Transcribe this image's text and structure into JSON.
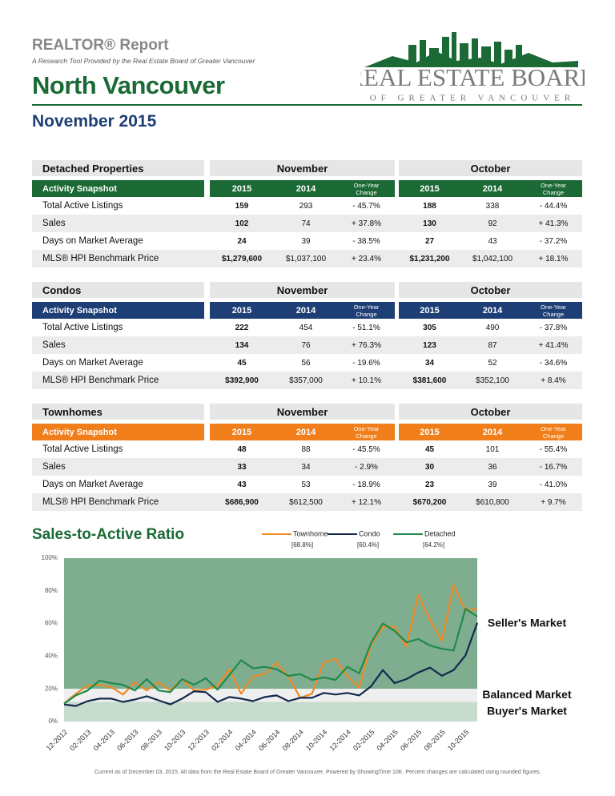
{
  "header": {
    "title": "REALTOR® Report",
    "subtitle": "A Research Tool Provided by the Real Estate Board of Greater Vancouver",
    "area": "North Vancouver",
    "period": "November 2015"
  },
  "logo": {
    "name": "REAL ESTATE BOARD",
    "tagline": "OF GREATER VANCOUVER"
  },
  "tables": [
    {
      "title": "Detached Properties",
      "color": "#1b6a35",
      "groups": [
        "November",
        "October"
      ],
      "columns": [
        "Activity Snapshot",
        "2015",
        "2014",
        "One-Year Change",
        "2015",
        "2014",
        "One-Year Change"
      ],
      "rows": [
        [
          "Total Active Listings",
          "159",
          "293",
          "- 45.7%",
          "188",
          "338",
          "- 44.4%"
        ],
        [
          "Sales",
          "102",
          "74",
          "+ 37.8%",
          "130",
          "92",
          "+ 41.3%"
        ],
        [
          "Days on Market Average",
          "24",
          "39",
          "- 38.5%",
          "27",
          "43",
          "- 37.2%"
        ],
        [
          "MLS® HPI Benchmark Price",
          "$1,279,600",
          "$1,037,100",
          "+ 23.4%",
          "$1,231,200",
          "$1,042,100",
          "+ 18.1%"
        ]
      ]
    },
    {
      "title": "Condos",
      "color": "#1d3f75",
      "groups": [
        "November",
        "October"
      ],
      "columns": [
        "Activity Snapshot",
        "2015",
        "2014",
        "One-Year Change",
        "2015",
        "2014",
        "One-Year Change"
      ],
      "rows": [
        [
          "Total Active Listings",
          "222",
          "454",
          "- 51.1%",
          "305",
          "490",
          "- 37.8%"
        ],
        [
          "Sales",
          "134",
          "76",
          "+ 76.3%",
          "123",
          "87",
          "+ 41.4%"
        ],
        [
          "Days on Market Average",
          "45",
          "56",
          "- 19.6%",
          "34",
          "52",
          "- 34.6%"
        ],
        [
          "MLS® HPI Benchmark Price",
          "$392,900",
          "$357,000",
          "+ 10.1%",
          "$381,600",
          "$352,100",
          "+ 8.4%"
        ]
      ]
    },
    {
      "title": "Townhomes",
      "color": "#f07e1b",
      "groups": [
        "November",
        "October"
      ],
      "columns": [
        "Activity Snapshot",
        "2015",
        "2014",
        "One-Year Change",
        "2015",
        "2014",
        "One-Year Change"
      ],
      "rows": [
        [
          "Total Active Listings",
          "48",
          "88",
          "- 45.5%",
          "45",
          "101",
          "- 55.4%"
        ],
        [
          "Sales",
          "33",
          "34",
          "- 2.9%",
          "30",
          "36",
          "- 16.7%"
        ],
        [
          "Days on Market Average",
          "43",
          "53",
          "- 18.9%",
          "23",
          "39",
          "- 41.0%"
        ],
        [
          "MLS® HPI Benchmark Price",
          "$686,900",
          "$612,500",
          "+ 12.1%",
          "$670,200",
          "$610,800",
          "+ 9.7%"
        ]
      ]
    }
  ],
  "chart_data": {
    "type": "line",
    "title": "Sales-to-Active Ratio",
    "categories": [
      "12-2012",
      null,
      "02-2013",
      null,
      "04-2013",
      null,
      "06-2013",
      null,
      "08-2013",
      null,
      "10-2013",
      null,
      "12-2013",
      null,
      "02-2014",
      null,
      "04-2014",
      null,
      "06-2014",
      null,
      "08-2014",
      null,
      "10-2014",
      null,
      "12-2014",
      null,
      "02-2015",
      null,
      "04-2015",
      null,
      "06-2015",
      null,
      "08-2015",
      null,
      "10-2015",
      null
    ],
    "series": [
      {
        "name": "Townhome",
        "note": "[68.8%]",
        "color": "#f08a24",
        "values": [
          11,
          17,
          22,
          22.5,
          21,
          16.5,
          24,
          19,
          24,
          19,
          26,
          19,
          19.5,
          22,
          32,
          17,
          27.5,
          29,
          36,
          27.5,
          14.5,
          17,
          36,
          38.5,
          27.5,
          21,
          47,
          58,
          58,
          46,
          77.5,
          62,
          49.5,
          83.5,
          68,
          68.8
        ]
      },
      {
        "name": "Condo",
        "note": "[60.4%]",
        "color": "#15294f",
        "values": [
          10.5,
          9.5,
          12.5,
          14,
          14,
          12,
          13.5,
          15.5,
          13,
          10.5,
          14,
          18.5,
          18,
          12,
          15,
          14,
          12.5,
          15,
          16,
          12.5,
          14.5,
          14.5,
          17.5,
          16.5,
          17.5,
          16,
          21.5,
          31.5,
          23.5,
          26,
          30,
          33,
          28,
          31.5,
          40.5,
          60.4
        ]
      },
      {
        "name": "Detached",
        "note": "[64.2%]",
        "color": "#1f8a4c",
        "values": [
          11,
          16,
          19,
          25,
          23.5,
          22.5,
          19,
          26,
          19,
          18,
          26,
          22.5,
          26.5,
          19.5,
          28.5,
          37.5,
          32.5,
          33.5,
          32,
          28,
          29,
          25.5,
          27,
          25.5,
          33.5,
          29.5,
          48,
          60,
          55.5,
          48.5,
          50.5,
          46.5,
          44.5,
          43.5,
          69,
          64.2
        ]
      }
    ],
    "zones": [
      {
        "label": "Seller's Market",
        "from": 20,
        "to": 100,
        "color": "#7fad8f"
      },
      {
        "label": "Balanced Market",
        "from": 12,
        "to": 20,
        "color": "#efefef"
      },
      {
        "label": "Buyer's Market",
        "from": 0,
        "to": 12,
        "color": "#c6dccc"
      }
    ],
    "ylim": [
      0,
      100
    ],
    "yticks": [
      {
        "value": 0,
        "label": "0%"
      },
      {
        "value": 20,
        "label": "20%"
      },
      {
        "value": 40,
        "label": "40%"
      },
      {
        "value": 60,
        "label": "60%"
      },
      {
        "value": 80,
        "label": "80%"
      },
      {
        "value": 100,
        "label": "100%"
      }
    ],
    "grid": false
  },
  "footer": "Current as of December 03, 2015. All data from the Real Estate Board of Greater Vancouver. Powered by ShowingTime 10K. Percent changes are calculated using rounded figures."
}
